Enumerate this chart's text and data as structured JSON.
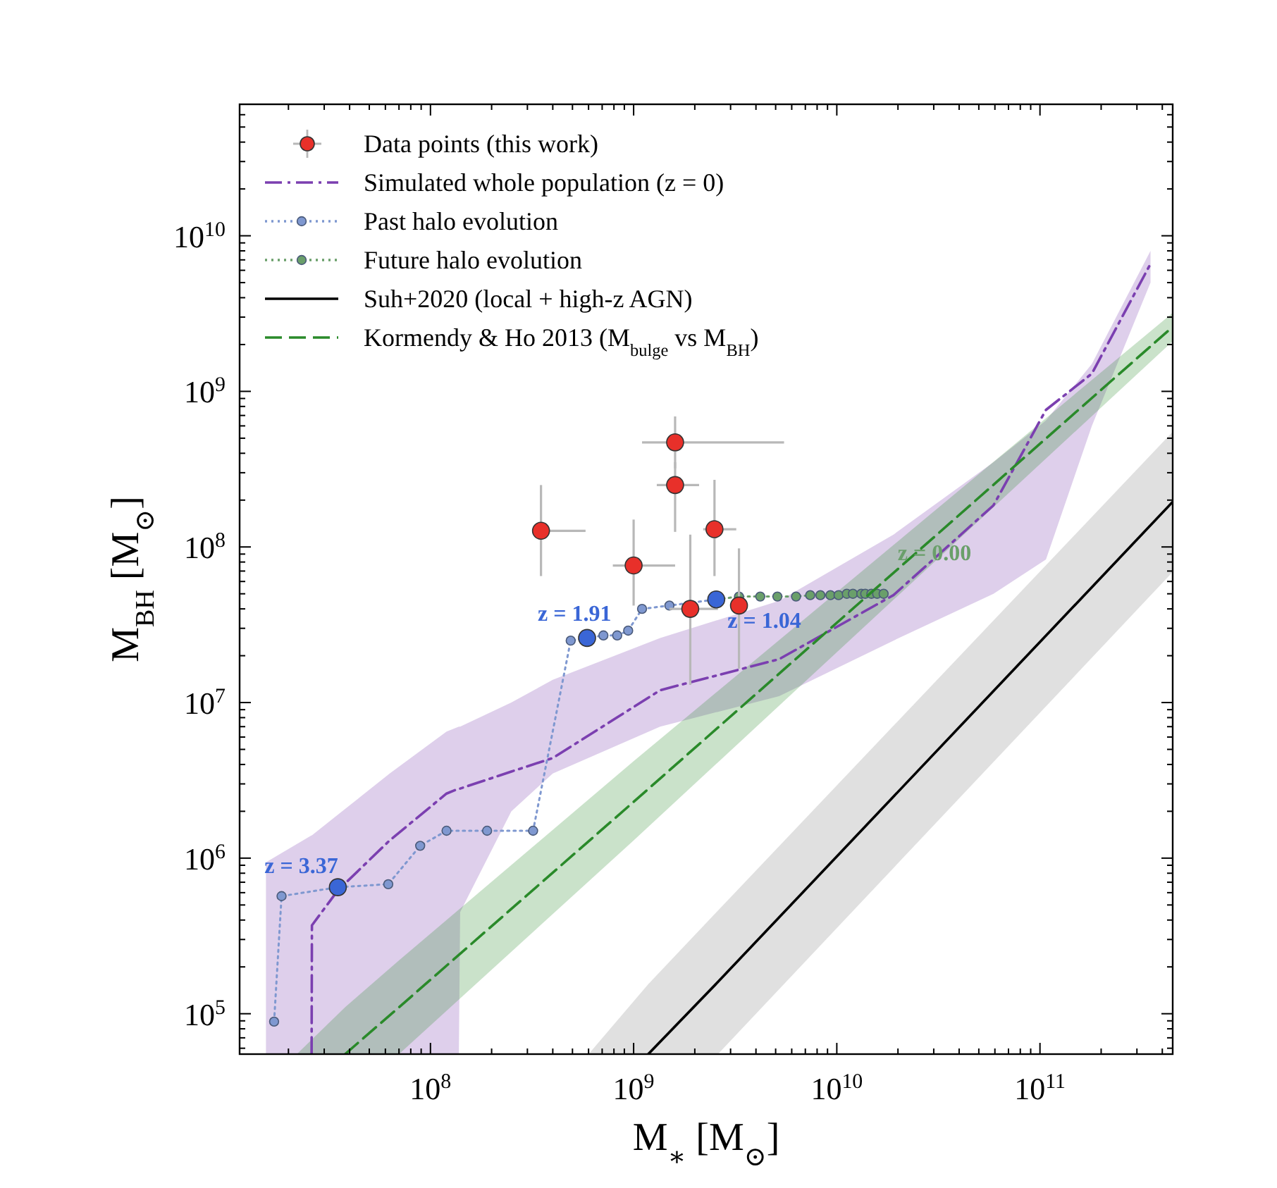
{
  "chart_data": {
    "type": "scatter",
    "log": "xy",
    "xlabel": "M$_{∗}$   [M$_{⊙}$]",
    "ylabel": "M$_{BH}$   [M$_{⊙}$]",
    "legend": "top left",
    "grid": false,
    "xlim": [
      11500000,
      450000000000
    ],
    "ylim": [
      55000,
      70000000000
    ],
    "xticks": [
      {
        "value": 20000000,
        "label": null
      },
      {
        "value": 30000000,
        "label": null
      },
      {
        "value": 40000000,
        "label": null
      },
      {
        "value": 50000000,
        "label": null
      },
      {
        "value": 60000000,
        "label": null
      },
      {
        "value": 70000000,
        "label": null
      },
      {
        "value": 80000000,
        "label": null
      },
      {
        "value": 90000000,
        "label": null
      },
      {
        "value": 100000000,
        "label": "10$^{8}$"
      },
      {
        "value": 200000000,
        "label": null
      },
      {
        "value": 300000000,
        "label": null
      },
      {
        "value": 400000000,
        "label": null
      },
      {
        "value": 500000000,
        "label": null
      },
      {
        "value": 600000000,
        "label": null
      },
      {
        "value": 700000000,
        "label": null
      },
      {
        "value": 800000000,
        "label": null
      },
      {
        "value": 900000000,
        "label": null
      },
      {
        "value": 1000000000,
        "label": "10$^{9}$"
      },
      {
        "value": 2000000000,
        "label": null
      },
      {
        "value": 3000000000,
        "label": null
      },
      {
        "value": 4000000000,
        "label": null
      },
      {
        "value": 5000000000,
        "label": null
      },
      {
        "value": 6000000000,
        "label": null
      },
      {
        "value": 7000000000,
        "label": null
      },
      {
        "value": 8000000000,
        "label": null
      },
      {
        "value": 9000000000,
        "label": null
      },
      {
        "value": 10000000000,
        "label": "10$^{10}$"
      },
      {
        "value": 20000000000,
        "label": null
      },
      {
        "value": 30000000000,
        "label": null
      },
      {
        "value": 40000000000,
        "label": null
      },
      {
        "value": 50000000000,
        "label": null
      },
      {
        "value": 60000000000,
        "label": null
      },
      {
        "value": 70000000000,
        "label": null
      },
      {
        "value": 80000000000,
        "label": null
      },
      {
        "value": 90000000000,
        "label": null
      },
      {
        "value": 100000000000,
        "label": "10$^{11}$"
      },
      {
        "value": 200000000000,
        "label": null
      },
      {
        "value": 300000000000,
        "label": null
      },
      {
        "value": 400000000000,
        "label": null
      }
    ],
    "yticks": [
      {
        "value": 60000,
        "label": null
      },
      {
        "value": 70000,
        "label": null
      },
      {
        "value": 80000,
        "label": null
      },
      {
        "value": 90000,
        "label": null
      },
      {
        "value": 100000,
        "label": "10$^{5}$"
      },
      {
        "value": 200000,
        "label": null
      },
      {
        "value": 300000,
        "label": null
      },
      {
        "value": 400000,
        "label": null
      },
      {
        "value": 500000,
        "label": null
      },
      {
        "value": 600000,
        "label": null
      },
      {
        "value": 700000,
        "label": null
      },
      {
        "value": 800000,
        "label": null
      },
      {
        "value": 900000,
        "label": null
      },
      {
        "value": 1000000,
        "label": "10$^{6}$"
      },
      {
        "value": 2000000,
        "label": null
      },
      {
        "value": 3000000,
        "label": null
      },
      {
        "value": 4000000,
        "label": null
      },
      {
        "value": 5000000,
        "label": null
      },
      {
        "value": 6000000,
        "label": null
      },
      {
        "value": 7000000,
        "label": null
      },
      {
        "value": 8000000,
        "label": null
      },
      {
        "value": 9000000,
        "label": null
      },
      {
        "value": 10000000,
        "label": "10$^{7}$"
      },
      {
        "value": 20000000,
        "label": null
      },
      {
        "value": 30000000,
        "label": null
      },
      {
        "value": 40000000,
        "label": null
      },
      {
        "value": 50000000,
        "label": null
      },
      {
        "value": 60000000,
        "label": null
      },
      {
        "value": 70000000,
        "label": null
      },
      {
        "value": 80000000,
        "label": null
      },
      {
        "value": 90000000,
        "label": null
      },
      {
        "value": 100000000,
        "label": "10$^{8}$"
      },
      {
        "value": 200000000,
        "label": null
      },
      {
        "value": 300000000,
        "label": null
      },
      {
        "value": 400000000,
        "label": null
      },
      {
        "value": 500000000,
        "label": null
      },
      {
        "value": 600000000,
        "label": null
      },
      {
        "value": 700000000,
        "label": null
      },
      {
        "value": 800000000,
        "label": null
      },
      {
        "value": 900000000,
        "label": null
      },
      {
        "value": 1000000000,
        "label": "10$^{9}$"
      },
      {
        "value": 2000000000,
        "label": null
      },
      {
        "value": 3000000000,
        "label": null
      },
      {
        "value": 4000000000,
        "label": null
      },
      {
        "value": 5000000000,
        "label": null
      },
      {
        "value": 6000000000,
        "label": null
      },
      {
        "value": 7000000000,
        "label": null
      },
      {
        "value": 8000000000,
        "label": null
      },
      {
        "value": 9000000000,
        "label": null
      },
      {
        "value": 10000000000,
        "label": "10$^{10}$"
      },
      {
        "value": 20000000000,
        "label": null
      },
      {
        "value": 30000000000,
        "label": null
      },
      {
        "value": 40000000000,
        "label": null
      },
      {
        "value": 50000000000,
        "label": null
      },
      {
        "value": 60000000000,
        "label": null
      }
    ],
    "series": [
      {
        "name": "Data points (this work)",
        "type": "scatter",
        "color": "#e8302a",
        "marker": "circle",
        "x": [
          350000000,
          1600000000,
          1600000000,
          2500000000,
          1000000000,
          1900000000,
          3300000000
        ],
        "values": [
          127000000,
          470000000,
          250000000,
          130000000,
          76000000,
          40000000,
          42000000
        ],
        "errors": [
          [
            65000000,
            250000000
          ],
          [
            320000000,
            690000000
          ],
          [
            125000000,
            350000000
          ],
          [
            65000000,
            270000000
          ],
          [
            42000000,
            150000000
          ],
          [
            13000000,
            120000000
          ],
          [
            16500000,
            98000000
          ]
        ],
        "xerrors": [
          [
            320000000,
            580000000
          ],
          [
            1100000000,
            5500000000
          ],
          [
            1300000000,
            2100000000
          ],
          [
            2200000000,
            3200000000
          ],
          [
            790000000,
            1600000000
          ],
          [
            1500000000,
            2600000000
          ],
          [
            3000000000,
            3600000000
          ]
        ]
      },
      {
        "name": "Simulated whole population (z = 0)",
        "type": "line",
        "color": "#7b3fb0",
        "line_style": "dashdot",
        "marker": "none",
        "x": [
          15500000,
          26000000,
          26100000,
          35000000,
          63000000,
          120000000,
          138000000,
          140000000,
          250000000,
          400000000,
          1350000000,
          5200000000,
          19000000000,
          59000000000,
          107000000000,
          180000000000,
          350000000000
        ],
        "values": [
          null,
          55000,
          370000,
          620000,
          1300000,
          2600000,
          2800000,
          2800000,
          3600000,
          4400000,
          12000000,
          19000000,
          49000000,
          185000000,
          760000000,
          1300000000,
          6600000000
        ],
        "upper": [
          940000,
          1400000,
          1400000,
          1900000,
          3500000,
          6500000,
          7000000,
          7000000,
          10000000,
          14000000,
          26000000,
          45000000,
          120000000,
          350000000,
          650000000,
          1500000000,
          8000000000
        ],
        "lower": [
          55000,
          55000,
          55000,
          55000,
          55000,
          55000,
          55000,
          450000,
          2000000,
          3500000,
          7000000,
          11000000,
          25000000,
          50000000,
          83000000,
          600000000,
          5000000000
        ]
      },
      {
        "name": "Past halo evolution",
        "type": "line",
        "color": "#7f98d0",
        "line_style": "dotted",
        "marker": "circle",
        "x": [
          17000000,
          18500000,
          35000000,
          62000000,
          89000000,
          120000000,
          190000000,
          320000000,
          490000000,
          590000000,
          710000000,
          830000000,
          940000000,
          1100000000,
          1500000000,
          2550000000
        ],
        "values": [
          89000,
          570000,
          650000,
          680000,
          1200000,
          1500000,
          1500000,
          1500000,
          25000000,
          26000000,
          27000000,
          27000000,
          29000000,
          40000000,
          42000000,
          46000000
        ]
      },
      {
        "name": "Future halo evolution",
        "type": "line",
        "color": "#6a9f6a",
        "line_style": "dotted",
        "marker": "circle",
        "x": [
          2550000000,
          3300000000,
          4200000000,
          5100000000,
          6300000000,
          7400000000,
          8300000000,
          9300000000,
          10200000000,
          11200000000,
          12000000000,
          13200000000,
          13800000000,
          14800000000,
          15800000000,
          17000000000
        ],
        "values": [
          46000000,
          48000000,
          48000000,
          48000000,
          48000000,
          49000000,
          49000000,
          49000000,
          49000000,
          50000000,
          50000000,
          50000000,
          50000000,
          50000000,
          50000000,
          50000000
        ]
      },
      {
        "name": "Suh+2020 (local + high-z AGN)",
        "type": "line",
        "color": "#000000",
        "line_style": "solid",
        "marker": "none",
        "x": [
          600000000,
          1180000000,
          2600000000,
          450000000000
        ],
        "values": [
          null,
          55000,
          160000,
          195000000
        ],
        "upper": [
          55000,
          155000,
          460000,
          550000000
        ],
        "lower": [
          55000,
          55000,
          55000,
          69000000
        ]
      },
      {
        "name": "Kormendy & Ho 2013 (M$_{bulge}$ vs M$_{BH}$)",
        "type": "line",
        "color": "#2a8a2a",
        "line_style": "dashed",
        "marker": "none",
        "x": [
          22000000,
          38000000,
          70000000,
          1000000000,
          450000000000
        ],
        "values": [
          null,
          55000,
          110000,
          2300000,
          2600000000
        ],
        "upper": [
          55000,
          110000,
          220000,
          4200000,
          3200000000
        ],
        "lower": [
          55000,
          55000,
          55000,
          1300000,
          2100000000
        ]
      },
      {
        "type": "scatter",
        "color": "#3a66d6",
        "marker": "circle",
        "x": [
          35000000,
          590000000,
          2550000000
        ],
        "values": [
          650000,
          26000000,
          46000000
        ]
      }
    ],
    "annotations": [
      {
        "text": "z = 3.37",
        "x": 35000000,
        "y": 650000
      },
      {
        "text": "z = 1.91",
        "x": 590000000,
        "y": 26000000
      },
      {
        "text": "z = 1.04",
        "x": 2550000000,
        "y": 46000000
      },
      {
        "text": "z = 0.00",
        "x": 17000000000,
        "y": 50000000
      }
    ]
  }
}
